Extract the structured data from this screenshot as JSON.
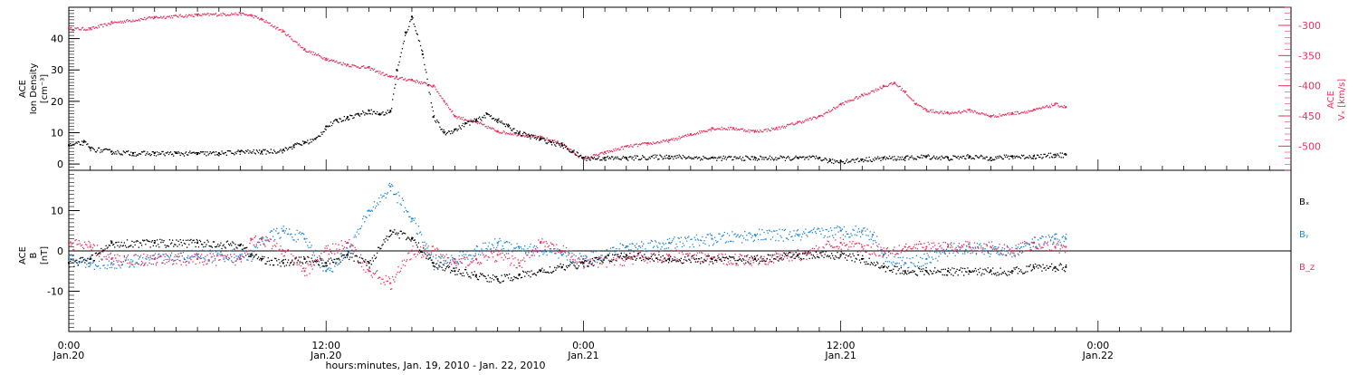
{
  "colors": {
    "black": "#000000",
    "pink": "#e8325c",
    "blue": "#1f86d8",
    "axis": "#000000"
  },
  "x_axis": {
    "title": "hours:minutes, Jan. 19, 2010 - Jan. 22, 2010",
    "range_hours": [
      0,
      57
    ],
    "ticks": [
      {
        "h": 0,
        "time": "0:00",
        "date": "Jan.20"
      },
      {
        "h": 12,
        "time": "12:00",
        "date": "Jan.20"
      },
      {
        "h": 24,
        "time": "0:00",
        "date": "Jan.21"
      },
      {
        "h": 36,
        "time": "12:00",
        "date": "Jan.21"
      },
      {
        "h": 48,
        "time": "0:00",
        "date": "Jan.22"
      }
    ]
  },
  "chart_data": [
    {
      "type": "scatter",
      "panel": "top",
      "ylabel_left": [
        "ACE",
        "Ion Density",
        "[cm⁻³]"
      ],
      "ylabel_right": [
        "ACE",
        "Vₓ [km/s]"
      ],
      "ylim_left": [
        -2,
        50
      ],
      "left_ticks": [
        0,
        10,
        20,
        30,
        40
      ],
      "ylim_right": [
        -540,
        -270
      ],
      "right_ticks": [
        -300,
        -350,
        -400,
        -450,
        -500
      ],
      "series": [
        {
          "axis": "left",
          "color": "black",
          "x": [
            0,
            0.7,
            1,
            2,
            3,
            4,
            5,
            6,
            7,
            8,
            9,
            10,
            10.5,
            11,
            11.5,
            12,
            12.5,
            13,
            13.5,
            14,
            14.5,
            15,
            15.3,
            15.7,
            16,
            16.5,
            17,
            17.5,
            18,
            18.5,
            19,
            19.5,
            20,
            20.5,
            21,
            21.5,
            22,
            22.5,
            23,
            23.5,
            24,
            25,
            26,
            28,
            30,
            32,
            34,
            35,
            35.5,
            36,
            37,
            38,
            39,
            40,
            41,
            42,
            43,
            44,
            45,
            46,
            46.5
          ],
          "y": [
            6,
            7,
            5,
            4,
            3.5,
            3.5,
            3.5,
            3.5,
            3.5,
            4,
            4,
            4.5,
            6,
            7,
            8,
            12,
            14,
            15,
            16,
            17,
            16,
            17,
            30,
            42,
            47,
            35,
            15,
            10,
            11,
            13,
            14,
            16,
            14,
            12,
            10,
            9,
            8,
            7,
            6,
            4,
            2,
            2,
            2,
            2.5,
            2,
            2,
            2,
            2,
            1,
            1,
            1.5,
            2,
            2,
            2.5,
            2,
            2.5,
            2,
            2.5,
            2.5,
            3,
            3
          ]
        },
        {
          "axis": "right",
          "color": "pink",
          "x": [
            0,
            1,
            2,
            4,
            6,
            8,
            8.5,
            9,
            10,
            11,
            12,
            13,
            14,
            15,
            16,
            17,
            17.5,
            18,
            19,
            20,
            21,
            22,
            23,
            23.5,
            24,
            25,
            26,
            27,
            28,
            29,
            30,
            31,
            32,
            33,
            34,
            35,
            36,
            37,
            38,
            38.5,
            39,
            39.5,
            40,
            41,
            42,
            43,
            44,
            45,
            46,
            46.5
          ],
          "y": [
            -305,
            -305,
            -295,
            -286,
            -282,
            -280,
            -283,
            -290,
            -310,
            -340,
            -355,
            -365,
            -370,
            -385,
            -390,
            -400,
            -425,
            -450,
            -460,
            -475,
            -480,
            -485,
            -495,
            -510,
            -520,
            -510,
            -500,
            -495,
            -490,
            -480,
            -470,
            -470,
            -475,
            -470,
            -460,
            -450,
            -430,
            -415,
            -400,
            -395,
            -410,
            -430,
            -440,
            -445,
            -440,
            -450,
            -445,
            -440,
            -430,
            -435
          ]
        }
      ]
    },
    {
      "type": "scatter",
      "panel": "bottom",
      "ylabel_left": [
        "ACE",
        "B",
        "[nT]"
      ],
      "ylim": [
        -20,
        20
      ],
      "left_ticks": [
        -10,
        0,
        10
      ],
      "legend_position": "right",
      "series": [
        {
          "name": "Bₓ",
          "color": "black",
          "x": [
            0,
            1,
            2,
            4,
            6,
            8,
            8.5,
            9,
            10,
            11,
            12,
            13,
            14,
            15,
            16,
            17,
            18,
            19,
            20,
            21,
            22,
            23,
            24,
            26,
            28,
            30,
            32,
            34,
            36,
            37,
            38,
            39,
            40,
            41,
            42,
            43,
            44,
            45,
            46,
            46.5
          ],
          "y": [
            -3,
            -2,
            2,
            2,
            2,
            1.5,
            -1,
            -2,
            -3,
            -2,
            -3,
            -1,
            -3,
            5,
            3,
            -3,
            -5,
            -6,
            -7,
            -6,
            -5,
            -4,
            -3,
            -1,
            -2,
            -2,
            -2,
            -1,
            -1,
            -2,
            -4,
            -5,
            -5,
            -5,
            -5,
            -5,
            -5,
            -4,
            -4,
            -4
          ]
        },
        {
          "name": "Bᵧ",
          "color": "blue",
          "x": [
            0,
            1,
            2,
            4,
            6,
            8,
            8.5,
            9,
            10,
            11,
            12,
            13,
            14,
            15,
            16,
            17,
            18,
            19,
            20,
            21,
            22,
            23,
            24,
            26,
            28,
            30,
            32,
            34,
            36,
            37,
            37.5,
            38,
            39,
            40,
            41,
            42,
            43,
            44,
            45,
            46,
            46.5
          ],
          "y": [
            -2,
            -3,
            -3,
            -2,
            -1,
            -1,
            -1,
            3,
            5,
            3,
            -5,
            0,
            10,
            16,
            8,
            -3,
            -2,
            0,
            2,
            1,
            0,
            -1,
            -2,
            1,
            2,
            3,
            4,
            4,
            5,
            5,
            4,
            -1,
            -3,
            -2,
            0,
            1,
            0,
            0,
            2,
            3,
            3
          ]
        },
        {
          "name": "B_z",
          "color": "pink",
          "x": [
            0,
            1,
            2,
            4,
            6,
            8,
            8.5,
            9,
            10,
            11,
            12,
            13,
            14,
            15,
            16,
            17,
            18,
            19,
            20,
            21,
            22,
            23,
            24,
            26,
            28,
            30,
            32,
            34,
            36,
            37,
            38,
            39,
            40,
            41,
            42,
            43,
            44,
            45,
            46,
            46.5
          ],
          "y": [
            2,
            1,
            -2,
            -2,
            -2,
            -2,
            3,
            3,
            0,
            -5,
            0,
            2,
            -5,
            -8,
            0,
            0,
            -3,
            -2,
            -1,
            -3,
            2,
            0,
            -3,
            -2,
            -1,
            -2,
            -2,
            -1,
            2,
            1,
            0,
            1,
            1,
            1,
            1,
            1,
            0,
            2,
            1,
            1
          ]
        }
      ]
    }
  ]
}
